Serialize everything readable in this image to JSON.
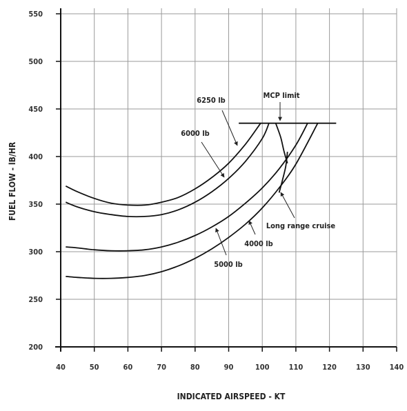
{
  "chart_data": {
    "type": "line",
    "xlabel": "INDICATED AIRSPEED - KT",
    "ylabel": "FUEL FLOW - lB/HR",
    "xlim": [
      40,
      140
    ],
    "ylim": [
      200,
      550
    ],
    "x_ticks": [
      40,
      50,
      60,
      70,
      80,
      90,
      100,
      110,
      120,
      130,
      140
    ],
    "y_ticks": [
      200,
      250,
      300,
      350,
      400,
      450,
      500,
      550
    ],
    "grid": true,
    "series": [
      {
        "name": "6250 lb",
        "x": [
          41.5,
          45,
          50,
          55,
          60,
          65,
          70,
          75,
          80,
          85,
          90,
          95,
          99.5
        ],
        "y": [
          369,
          363,
          356,
          351,
          349,
          349,
          352,
          357,
          366,
          378,
          393,
          413,
          435
        ]
      },
      {
        "name": "6000 lb",
        "x": [
          41.5,
          45,
          50,
          55,
          60,
          65,
          70,
          75,
          80,
          85,
          90,
          95,
          100,
          102
        ],
        "y": [
          352,
          347,
          342,
          339,
          337,
          337,
          339,
          344,
          352,
          363,
          377,
          395,
          419,
          435
        ]
      },
      {
        "name": "4000 lb",
        "x": [
          41.5,
          45,
          50,
          55,
          60,
          65,
          70,
          75,
          80,
          85,
          90,
          95,
          100,
          105,
          110,
          113.5
        ],
        "y": [
          305,
          304,
          302,
          301,
          301,
          302,
          305,
          310,
          317,
          326,
          337,
          351,
          367,
          387,
          412,
          435
        ]
      },
      {
        "name": "5000 lb",
        "x": [
          41.5,
          45,
          50,
          55,
          60,
          65,
          70,
          75,
          80,
          85,
          90,
          95,
          100,
          105,
          110,
          116.5
        ],
        "y": [
          274,
          273,
          272,
          272,
          273,
          275,
          279,
          285,
          293,
          303,
          315,
          329,
          346,
          367,
          392,
          435
        ]
      },
      {
        "name": "Long range cruise",
        "x": [
          104,
          105.5,
          106.5,
          107.5
        ],
        "y": [
          435,
          420,
          405,
          393
        ]
      },
      {
        "name": "Long range cruise",
        "x": [
          107.5,
          107,
          106,
          105
        ],
        "y": [
          405,
          390,
          375,
          362
        ]
      }
    ],
    "reference_lines": [
      {
        "label": "MCP limit",
        "y": 435,
        "x_range": [
          93,
          122
        ]
      }
    ],
    "annotations": [
      {
        "text": "6250 lb",
        "points_to": "6250 lb"
      },
      {
        "text": "6000 lb",
        "points_to": "6000 lb"
      },
      {
        "text": "MCP limit",
        "points_to": "MCP limit"
      },
      {
        "text": "Long range cruise",
        "points_to": "Long range cruise"
      },
      {
        "text": "4000 lb",
        "points_to": "4000 lb"
      },
      {
        "text": "5000 lb",
        "points_to": "5000 lb"
      }
    ]
  }
}
